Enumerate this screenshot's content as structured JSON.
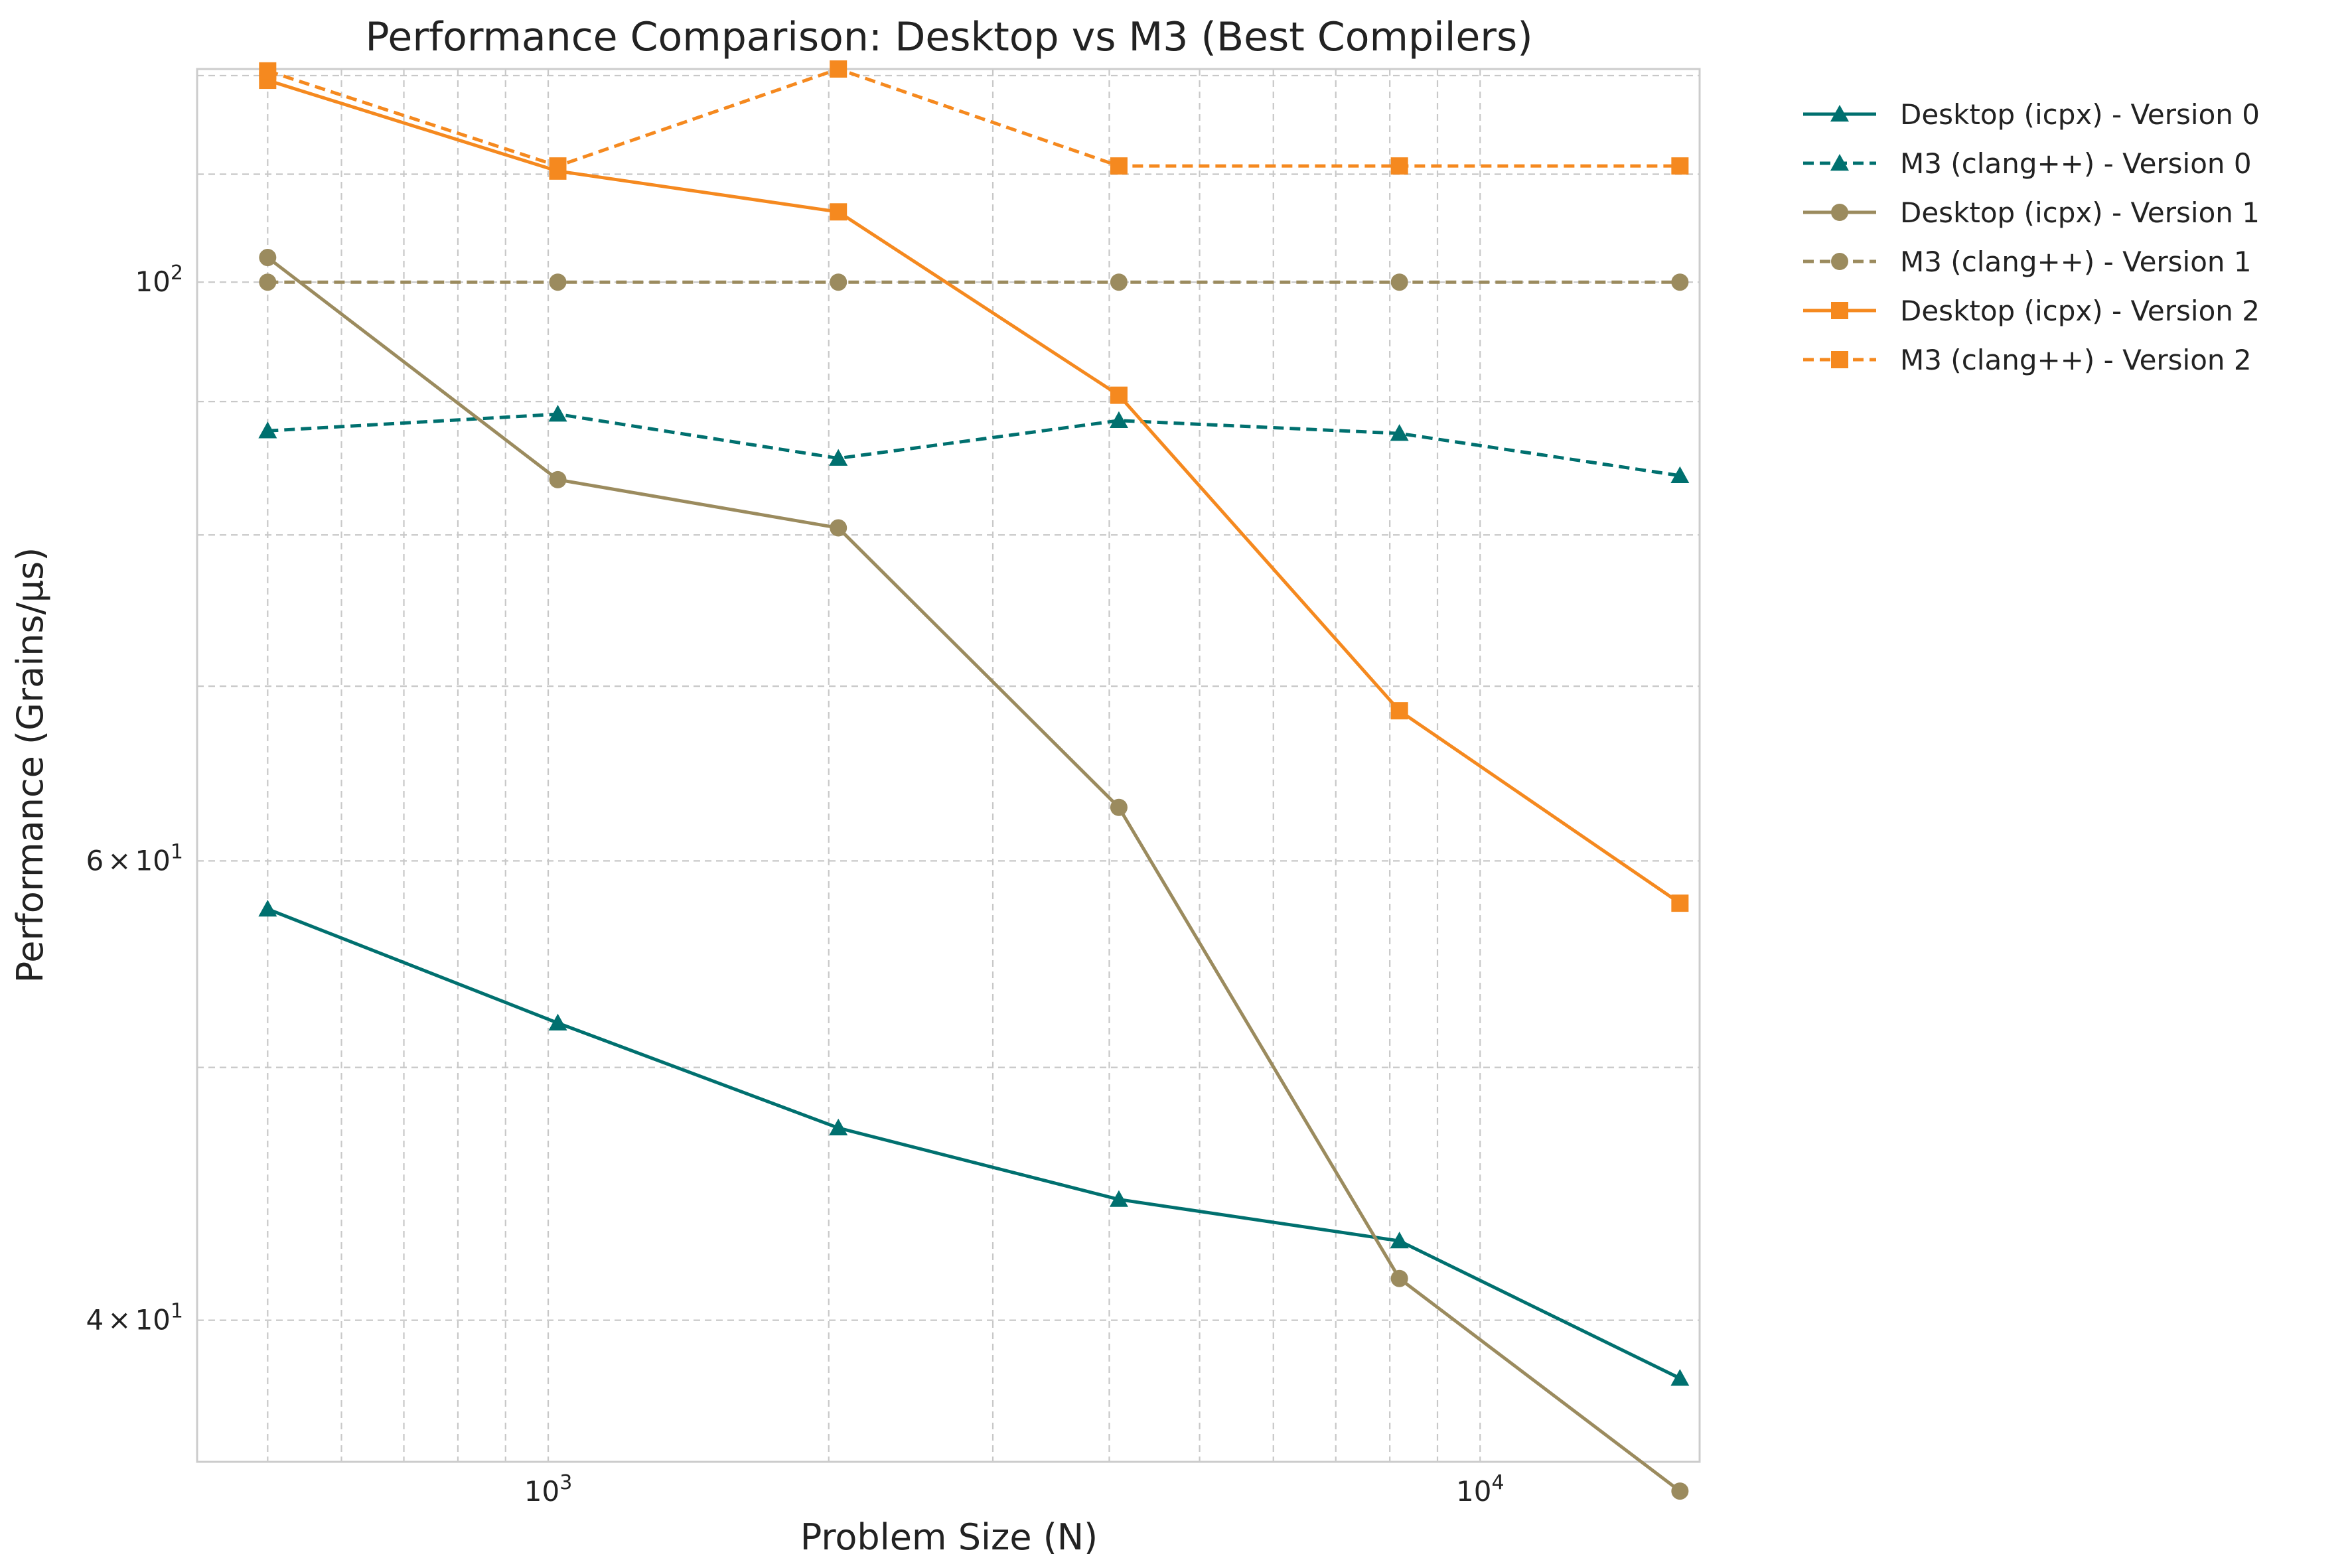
{
  "chart_data": {
    "type": "line",
    "title": "Performance Comparison: Desktop vs M3 (Best Compilers)",
    "xlabel": "Problem Size (N)",
    "ylabel": "Performance (Grains/μs)",
    "x_scale": "log",
    "y_scale": "log",
    "xlim": [
      420,
      17200
    ],
    "ylim": [
      35.3,
      120.7
    ],
    "x": [
      500,
      1024,
      2048,
      4096,
      8192,
      16384
    ],
    "x_ticks": [
      {
        "value": 1000,
        "base": "10",
        "exp": "3"
      },
      {
        "value": 10000,
        "base": "10",
        "exp": "4"
      }
    ],
    "y_ticks": [
      {
        "value": 40,
        "mantissa": "4",
        "times": "×",
        "base": "10",
        "exp": "1"
      },
      {
        "value": 60,
        "mantissa": "6",
        "times": "×",
        "base": "10",
        "exp": "1"
      },
      {
        "value": 100,
        "mantissa": "",
        "times": "",
        "base": "10",
        "exp": "2"
      }
    ],
    "grid": true,
    "legend_position": "outside-right",
    "series": [
      {
        "name": "Desktop (icpx) - Version 0",
        "color": "#00706f",
        "dash": "solid",
        "marker": "triangle",
        "values": [
          57.5,
          52.0,
          47.4,
          44.5,
          42.9,
          38.0
        ]
      },
      {
        "name": "M3 (clang++) - Version 0",
        "color": "#00706f",
        "dash": "dashed",
        "marker": "triangle",
        "values": [
          87.7,
          89.0,
          85.6,
          88.5,
          87.5,
          84.3
        ]
      },
      {
        "name": "Desktop (icpx) - Version 1",
        "color": "#9b8b5e",
        "dash": "solid",
        "marker": "circle",
        "values": [
          102.2,
          84.0,
          80.5,
          62.9,
          41.5,
          34.4
        ]
      },
      {
        "name": "M3 (clang++) - Version 1",
        "color": "#9b8b5e",
        "dash": "dashed",
        "marker": "circle",
        "values": [
          100,
          100,
          100,
          100,
          100,
          100
        ]
      },
      {
        "name": "Desktop (icpx) - Version 2",
        "color": "#f5891f",
        "dash": "solid",
        "marker": "square",
        "values": [
          119.5,
          110.3,
          106.4,
          90.5,
          68.5,
          57.8
        ]
      },
      {
        "name": "M3 (clang++) - Version 2",
        "color": "#f5891f",
        "dash": "dashed",
        "marker": "square",
        "values": [
          120.5,
          110.8,
          120.7,
          110.8,
          110.8,
          110.8
        ]
      }
    ]
  }
}
